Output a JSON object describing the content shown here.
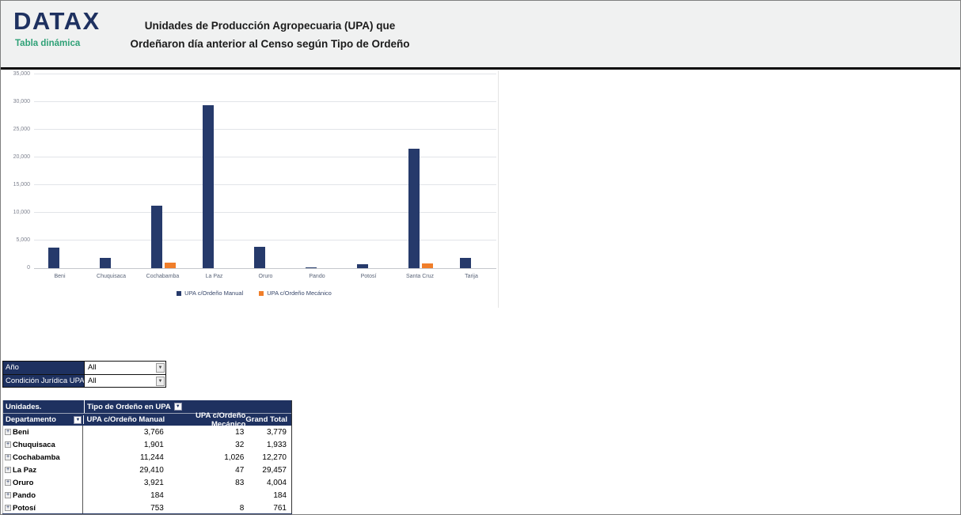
{
  "header": {
    "logo": "DATAX",
    "logo_subtitle": "Tabla dinámica",
    "title_line1": "Unidades de Producción Agropecuaria (UPA) que",
    "title_line2": "Ordeñaron día anterior al Censo según Tipo de Ordeño"
  },
  "chart_data": {
    "type": "bar",
    "title": "",
    "xlabel": "",
    "ylabel": "",
    "categories": [
      "Beni",
      "Chuquisaca",
      "Cochabamba",
      "La Paz",
      "Oruro",
      "Pando",
      "Potosí",
      "Santa Cruz",
      "Tarija"
    ],
    "series": [
      {
        "name": "UPA c/Ordeño Manual",
        "color": "#263A6B",
        "values": [
          3766,
          1901,
          11244,
          29410,
          3921,
          184,
          753,
          21600,
          1900
        ]
      },
      {
        "name": "UPA c/Ordeño Mecánico",
        "color": "#F07E2A",
        "values": [
          13,
          32,
          1026,
          47,
          83,
          0,
          8,
          900,
          0
        ]
      }
    ],
    "ylim": [
      0,
      35000
    ],
    "ytick_step": 5000,
    "ytick_labels": [
      "0",
      "5,000",
      "10,000",
      "15,000",
      "20,000",
      "25,000",
      "30,000",
      "35,000"
    ],
    "grid": true,
    "legend_position": "bottom"
  },
  "filters": [
    {
      "label": "Año",
      "value": "All"
    },
    {
      "label": "Condición Jurídica UPA",
      "value": "All"
    }
  ],
  "table": {
    "corner_label": "Unidades.",
    "col_group_label": "Tipo de Ordeño en UPA",
    "row_header": "Departamento",
    "columns": [
      "UPA c/Ordeño Manual",
      "UPA c/Ordeño Mecánico",
      "Grand Total"
    ],
    "rows": [
      {
        "name": "Beni",
        "manual": "3,766",
        "mecanico": "13",
        "total": "3,779"
      },
      {
        "name": "Chuquisaca",
        "manual": "1,901",
        "mecanico": "32",
        "total": "1,933"
      },
      {
        "name": "Cochabamba",
        "manual": "11,244",
        "mecanico": "1,026",
        "total": "12,270"
      },
      {
        "name": "La Paz",
        "manual": "29,410",
        "mecanico": "47",
        "total": "29,457"
      },
      {
        "name": "Oruro",
        "manual": "3,921",
        "mecanico": "83",
        "total": "4,004"
      },
      {
        "name": "Pando",
        "manual": "184",
        "mecanico": "",
        "total": "184"
      },
      {
        "name": "Potosí",
        "manual": "753",
        "mecanico": "8",
        "total": "761"
      }
    ]
  },
  "icons": {
    "dropdown_arrow": "▼",
    "expand_plus": "+"
  }
}
